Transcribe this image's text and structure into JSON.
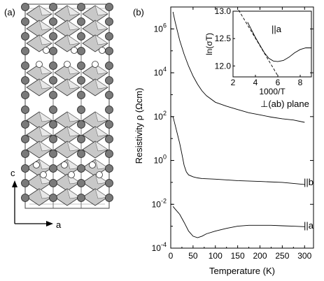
{
  "panel_a": {
    "label": "(a)",
    "axis_c": "c",
    "axis_a": "a"
  },
  "panel_b": {
    "label": "(b)"
  },
  "chart_data": [
    {
      "type": "line",
      "title": "",
      "xlabel": "Temperature (K)",
      "ylabel": "Resistivity ρ (Ωcm)",
      "xlim": [
        0,
        320
      ],
      "ylim": [
        0.0001,
        10000000
      ],
      "yscale": "log",
      "xticks": [
        "0",
        "50",
        "100",
        "150",
        "200",
        "250",
        "300"
      ],
      "yticks": [
        "10-4",
        "10-2",
        "100",
        "102",
        "104",
        "106"
      ],
      "series": [
        {
          "name": "⊥(ab) plane",
          "x": [
            5,
            10,
            20,
            30,
            40,
            50,
            60,
            70,
            80,
            100,
            125,
            150,
            175,
            200,
            225,
            250,
            275,
            300
          ],
          "y": [
            6000000,
            2000000,
            300000,
            70000,
            20000,
            7000,
            3000,
            1500,
            900,
            450,
            300,
            210,
            150,
            120,
            95,
            80,
            70,
            55
          ]
        },
        {
          "name": "||b",
          "x": [
            5,
            10,
            20,
            25,
            30,
            35,
            40,
            50,
            60,
            70,
            100,
            150,
            200,
            250,
            300
          ],
          "y": [
            100,
            40,
            6,
            2,
            0.6,
            0.3,
            0.22,
            0.18,
            0.16,
            0.15,
            0.14,
            0.12,
            0.11,
            0.1,
            0.08
          ]
        },
        {
          "name": "||a",
          "x": [
            5,
            10,
            20,
            30,
            40,
            50,
            60,
            70,
            80,
            100,
            125,
            150,
            175,
            200,
            225,
            250,
            275,
            300
          ],
          "y": [
            0.008,
            0.006,
            0.0035,
            0.0015,
            0.0006,
            0.00035,
            0.0003,
            0.00035,
            0.00045,
            0.0006,
            0.0008,
            0.001,
            0.0011,
            0.0011,
            0.0011,
            0.00105,
            0.001,
            0.00095
          ]
        }
      ],
      "annotations": [
        "⊥(ab) plane",
        "||b",
        "||a"
      ]
    },
    {
      "type": "line",
      "title": "||a",
      "xlabel": "1000/T",
      "ylabel": "ln(σT)",
      "xlim": [
        2,
        9
      ],
      "ylim": [
        11.8,
        13
      ],
      "xticks": [
        "2",
        "4",
        "6",
        "8"
      ],
      "yticks": [
        "12.0",
        "12.5",
        "13.0"
      ],
      "series": [
        {
          "x": [
            3.3,
            3.6,
            4,
            4.4,
            4.8,
            5.2,
            5.6,
            6,
            6.5,
            7,
            7.5,
            8,
            8.5,
            9
          ],
          "y": [
            12.8,
            12.68,
            12.52,
            12.38,
            12.24,
            12.14,
            12.09,
            12.08,
            12.1,
            12.16,
            12.24,
            12.3,
            12.33,
            12.33
          ]
        },
        {
          "style": "dashed",
          "x": [
            2.5,
            6
          ],
          "y": [
            13.02,
            11.82
          ]
        }
      ]
    }
  ]
}
